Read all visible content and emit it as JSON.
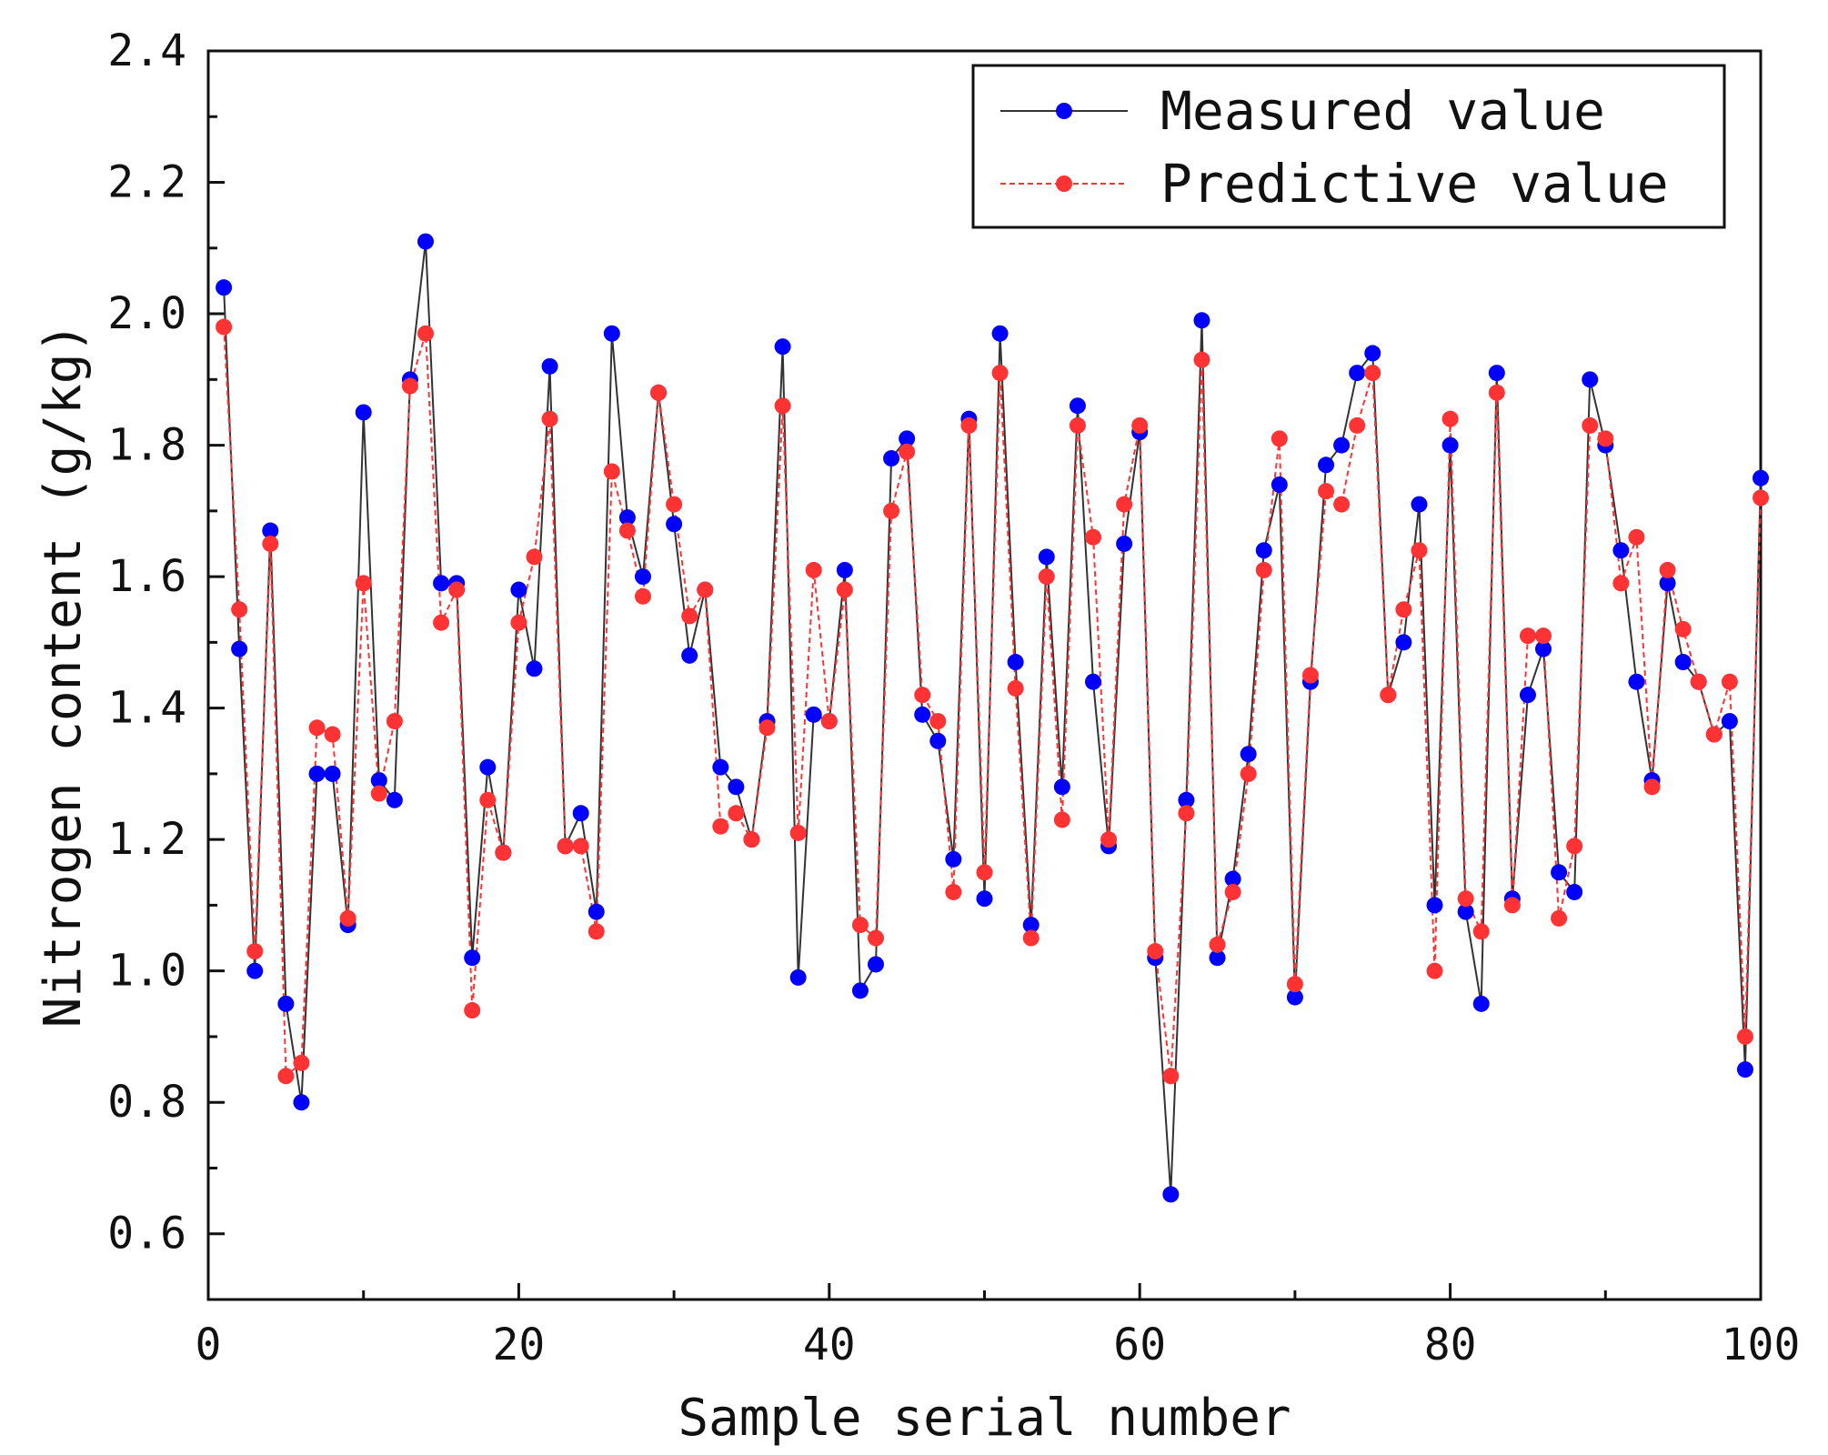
{
  "chart_data": {
    "type": "line",
    "title": "",
    "xlabel": "Sample serial number",
    "ylabel": "Nitrogen content (g/kg)",
    "xlim": [
      0,
      100
    ],
    "ylim": [
      0.5,
      2.4
    ],
    "x_ticks": [
      "0",
      "20",
      "40",
      "60",
      "80",
      "100"
    ],
    "y_ticks": [
      "0.6",
      "0.8",
      "1.0",
      "1.2",
      "1.4",
      "1.6",
      "1.8",
      "2.0",
      "2.2",
      "2.4"
    ],
    "legend_position": "top-right",
    "x": [
      1,
      2,
      3,
      4,
      5,
      6,
      7,
      8,
      9,
      10,
      11,
      12,
      13,
      14,
      15,
      16,
      17,
      18,
      19,
      20,
      21,
      22,
      23,
      24,
      25,
      26,
      27,
      28,
      29,
      30,
      31,
      32,
      33,
      34,
      35,
      36,
      37,
      38,
      39,
      40,
      41,
      42,
      43,
      44,
      45,
      46,
      47,
      48,
      49,
      50,
      51,
      52,
      53,
      54,
      55,
      56,
      57,
      58,
      59,
      60,
      61,
      62,
      63,
      64,
      65,
      66,
      67,
      68,
      69,
      70,
      71,
      72,
      73,
      74,
      75,
      76,
      77,
      78,
      79,
      80,
      81,
      82,
      83,
      84,
      85,
      86,
      87,
      88,
      89,
      90,
      91,
      92,
      93,
      94,
      95,
      96,
      97,
      98,
      99,
      100
    ],
    "series": [
      {
        "name": "Measured value",
        "color": "#0000ff",
        "line_color": "#333333",
        "line_style": "solid",
        "values": [
          2.04,
          1.49,
          1.0,
          1.67,
          0.95,
          0.8,
          1.3,
          1.3,
          1.07,
          1.85,
          1.29,
          1.26,
          1.9,
          2.11,
          1.59,
          1.59,
          1.02,
          1.31,
          1.18,
          1.58,
          1.46,
          1.92,
          1.19,
          1.24,
          1.09,
          1.97,
          1.69,
          1.6,
          1.88,
          1.68,
          1.48,
          1.58,
          1.31,
          1.28,
          1.2,
          1.38,
          1.95,
          0.99,
          1.39,
          1.38,
          1.61,
          0.97,
          1.01,
          1.78,
          1.81,
          1.39,
          1.35,
          1.17,
          1.84,
          1.11,
          1.97,
          1.47,
          1.07,
          1.63,
          1.28,
          1.86,
          1.44,
          1.19,
          1.65,
          1.82,
          1.02,
          0.66,
          1.26,
          1.99,
          1.02,
          1.14,
          1.33,
          1.64,
          1.74,
          0.96,
          1.44,
          1.77,
          1.8,
          1.91,
          1.94,
          1.42,
          1.5,
          1.71,
          1.1,
          1.8,
          1.09,
          0.95,
          1.91,
          1.11,
          1.42,
          1.49,
          1.15,
          1.12,
          1.9,
          1.8,
          1.64,
          1.44,
          1.29,
          1.59,
          1.47,
          1.44,
          1.36,
          1.38,
          0.85,
          1.75
        ]
      },
      {
        "name": "Predictive value",
        "color": "#ff3333",
        "line_color": "#ff3333",
        "line_style": "dashed",
        "values": [
          1.98,
          1.55,
          1.03,
          1.65,
          0.84,
          0.86,
          1.37,
          1.36,
          1.08,
          1.59,
          1.27,
          1.38,
          1.89,
          1.97,
          1.53,
          1.58,
          0.94,
          1.26,
          1.18,
          1.53,
          1.63,
          1.84,
          1.19,
          1.19,
          1.06,
          1.76,
          1.67,
          1.57,
          1.88,
          1.71,
          1.54,
          1.58,
          1.22,
          1.24,
          1.2,
          1.37,
          1.86,
          1.21,
          1.61,
          1.38,
          1.58,
          1.07,
          1.05,
          1.7,
          1.79,
          1.42,
          1.38,
          1.12,
          1.83,
          1.15,
          1.91,
          1.43,
          1.05,
          1.6,
          1.23,
          1.83,
          1.66,
          1.2,
          1.71,
          1.83,
          1.03,
          0.84,
          1.24,
          1.93,
          1.04,
          1.12,
          1.3,
          1.61,
          1.81,
          0.98,
          1.45,
          1.73,
          1.71,
          1.83,
          1.91,
          1.42,
          1.55,
          1.64,
          1.0,
          1.84,
          1.11,
          1.06,
          1.88,
          1.1,
          1.51,
          1.51,
          1.08,
          1.19,
          1.83,
          1.81,
          1.59,
          1.66,
          1.28,
          1.61,
          1.52,
          1.44,
          1.36,
          1.44,
          0.9,
          1.72
        ]
      }
    ]
  }
}
